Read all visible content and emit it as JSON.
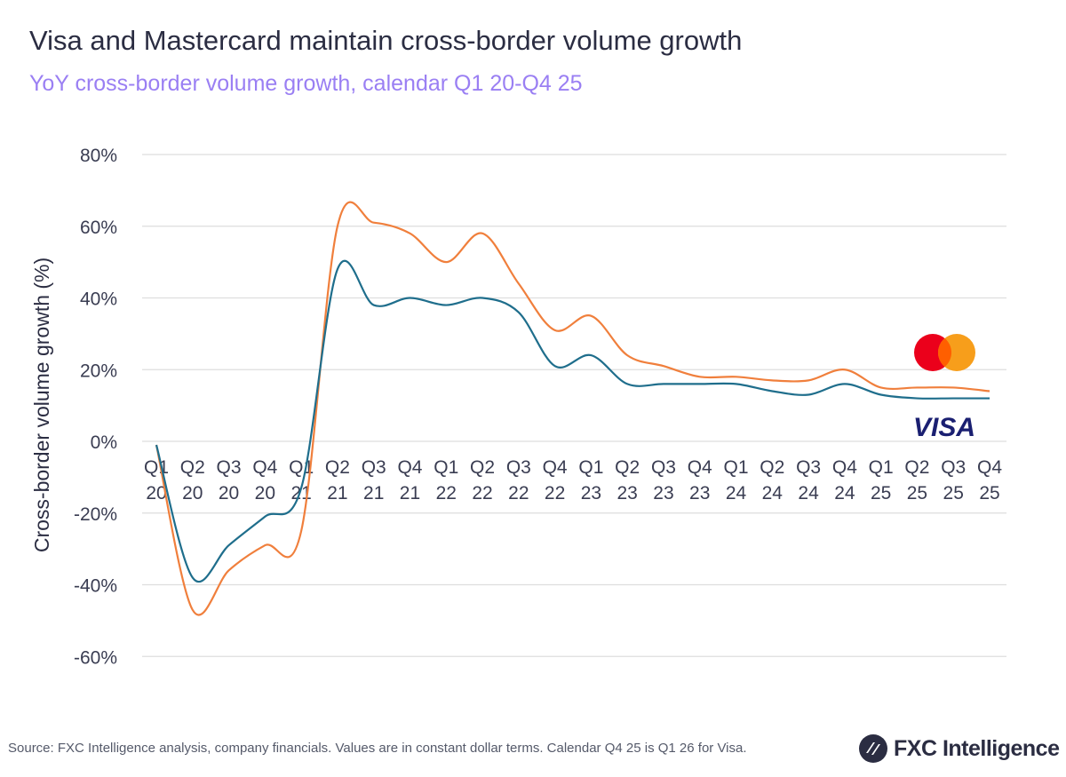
{
  "title": "Visa and Mastercard maintain cross-border volume growth",
  "subtitle": "YoY cross-border volume growth, calendar Q1 20-Q4 25",
  "source": "Source: FXC Intelligence analysis, company financials. Values are in constant dollar terms. Calendar Q4 25 is Q1 26 for Visa.",
  "brand": "FXC Intelligence",
  "chart_data": {
    "type": "line",
    "title": "Visa and Mastercard maintain cross-border volume growth",
    "subtitle": "YoY cross-border volume growth, calendar Q1 20-Q4 25",
    "xlabel": "",
    "ylabel": "Cross-border volume growth (%)",
    "ylim": [
      -60,
      80
    ],
    "yticks": [
      80,
      60,
      40,
      20,
      0,
      -20,
      -40,
      -60
    ],
    "ytick_labels": [
      "80%",
      "60%",
      "40%",
      "20%",
      "0%",
      "-20%",
      "-40%",
      "-60%"
    ],
    "grid": true,
    "categories": [
      [
        "Q1",
        "20"
      ],
      [
        "Q2",
        "20"
      ],
      [
        "Q3",
        "20"
      ],
      [
        "Q4",
        "20"
      ],
      [
        "Q1",
        "21"
      ],
      [
        "Q2",
        "21"
      ],
      [
        "Q3",
        "21"
      ],
      [
        "Q4",
        "21"
      ],
      [
        "Q1",
        "22"
      ],
      [
        "Q2",
        "22"
      ],
      [
        "Q3",
        "22"
      ],
      [
        "Q4",
        "22"
      ],
      [
        "Q1",
        "23"
      ],
      [
        "Q2",
        "23"
      ],
      [
        "Q3",
        "23"
      ],
      [
        "Q4",
        "23"
      ],
      [
        "Q1",
        "24"
      ],
      [
        "Q2",
        "24"
      ],
      [
        "Q3",
        "24"
      ],
      [
        "Q4",
        "24"
      ],
      [
        "Q1",
        "25"
      ],
      [
        "Q2",
        "25"
      ],
      [
        "Q3",
        "25"
      ],
      [
        "Q4",
        "25"
      ]
    ],
    "series": [
      {
        "legend": "mastercard-logo",
        "color": "#f07f3c",
        "values": [
          -1,
          -47,
          -36,
          -29,
          -25,
          60,
          61,
          58,
          50,
          58,
          44,
          31,
          35,
          24,
          21,
          18,
          18,
          17,
          17,
          20,
          15,
          15,
          15,
          14
        ]
      },
      {
        "legend": "visa-logo",
        "color": "#1f6e8c",
        "values": [
          -1,
          -38,
          -29,
          -21,
          -13,
          48,
          38,
          40,
          38,
          40,
          36,
          21,
          24,
          16,
          16,
          16,
          16,
          14,
          13,
          16,
          13,
          12,
          12,
          12
        ]
      }
    ],
    "legend_placement": "right, as brand logos next to line ends"
  },
  "colors": {
    "mastercard_red": "#eb001b",
    "mastercard_yellow": "#f79e1b",
    "mastercard_overlap": "#ff5f00",
    "visa_blue": "#1a1f71"
  }
}
